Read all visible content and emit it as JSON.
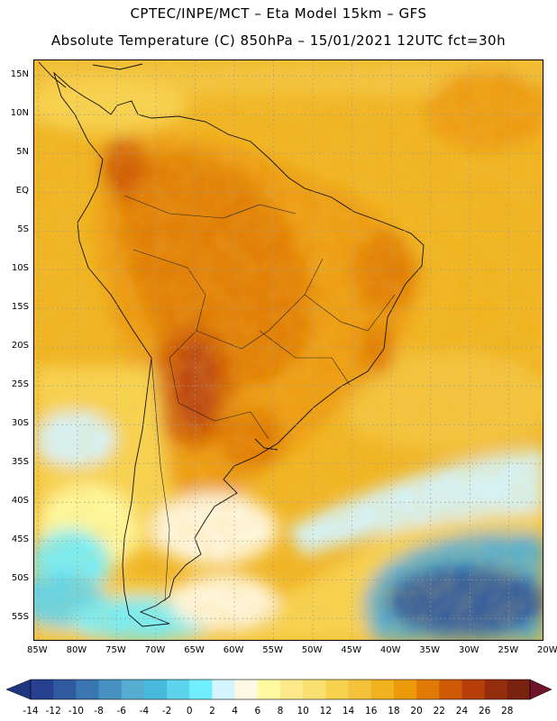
{
  "header": {
    "line1": "CPTEC/INPE/MCT –  Eta Model 15km – GFS",
    "line2": "Absolute Temperature (C) 850hPa – 15/01/2021 12UTC fct=30h"
  },
  "map": {
    "variable": "Absolute Temperature (C) 850hPa",
    "region": "South America",
    "lat_labels": [
      "15N",
      "10N",
      "5N",
      "EQ",
      "5S",
      "10S",
      "15S",
      "20S",
      "25S",
      "30S",
      "35S",
      "40S",
      "45S",
      "50S",
      "55S"
    ],
    "lat_values": [
      15,
      10,
      5,
      0,
      -5,
      -10,
      -15,
      -20,
      -25,
      -30,
      -35,
      -40,
      -45,
      -50,
      -55
    ],
    "lon_labels": [
      "85W",
      "80W",
      "75W",
      "70W",
      "65W",
      "60W",
      "55W",
      "50W",
      "45W",
      "40W",
      "35W",
      "30W",
      "25W",
      "20W"
    ],
    "lon_values": [
      -85,
      -80,
      -75,
      -70,
      -65,
      -60,
      -55,
      -50,
      -45,
      -40,
      -35,
      -30,
      -25,
      -20
    ],
    "lon_range": [
      -85.5,
      -20.5
    ],
    "lat_range": [
      -58,
      17
    ]
  },
  "colorbar": {
    "labels": [
      "-14",
      "-12",
      "-10",
      "-8",
      "-6",
      "-4",
      "-2",
      "0",
      "2",
      "4",
      "6",
      "8",
      "10",
      "12",
      "14",
      "16",
      "18",
      "20",
      "22",
      "24",
      "26",
      "28"
    ],
    "colors": [
      "#27408f",
      "#2f5aa0",
      "#3a76b2",
      "#4691c2",
      "#55aed0",
      "#47b9dc",
      "#5dd3ee",
      "#6fefff",
      "#d4f4ff",
      "#fff8e4",
      "#fffaa0",
      "#fde98a",
      "#fae070",
      "#f7d24f",
      "#f3c23a",
      "#f0b21e",
      "#ec9a08",
      "#e07a04",
      "#cf5a06",
      "#b7400a",
      "#952c0c",
      "#78220f"
    ],
    "low_arrow_color": "#1e3582",
    "high_arrow_color": "#70142a"
  }
}
